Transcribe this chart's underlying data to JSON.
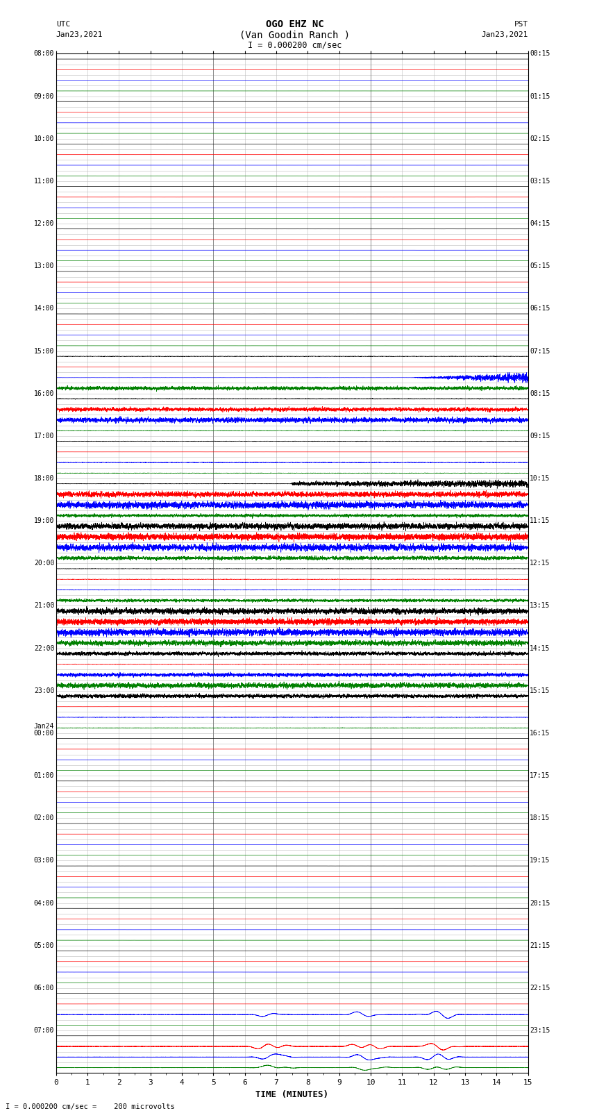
{
  "title_line1": "OGO EHZ NC",
  "title_line2": "(Van Goodin Ranch )",
  "title_line3": "I = 0.000200 cm/sec",
  "left_label_top": "UTC",
  "left_label_date": "Jan23,2021",
  "right_label_top": "PST",
  "right_label_date": "Jan23,2021",
  "xlabel": "TIME (MINUTES)",
  "bottom_note": "I = 0.000200 cm/sec =    200 microvolts",
  "n_rows": 96,
  "n_minutes": 15,
  "background_color": "#ffffff",
  "grid_color": "#bbbbbb",
  "figsize": [
    8.5,
    16.13
  ],
  "dpi": 100,
  "utc_labels": {
    "0": "08:00",
    "4": "09:00",
    "8": "10:00",
    "12": "11:00",
    "16": "12:00",
    "20": "13:00",
    "24": "14:00",
    "28": "15:00",
    "32": "16:00",
    "36": "17:00",
    "40": "18:00",
    "44": "19:00",
    "48": "20:00",
    "52": "21:00",
    "56": "22:00",
    "60": "23:00",
    "64": "Jan24\n00:00",
    "68": "01:00",
    "72": "02:00",
    "76": "03:00",
    "80": "04:00",
    "84": "05:00",
    "88": "06:00",
    "92": "07:00"
  },
  "pst_labels": {
    "0": "00:15",
    "4": "01:15",
    "8": "02:15",
    "12": "03:15",
    "16": "04:15",
    "20": "05:15",
    "24": "06:15",
    "28": "07:15",
    "32": "08:15",
    "36": "09:15",
    "40": "10:15",
    "44": "11:15",
    "48": "12:15",
    "52": "13:15",
    "56": "14:15",
    "60": "15:15",
    "64": "16:15",
    "68": "17:15",
    "72": "18:15",
    "76": "19:15",
    "80": "20:15",
    "84": "21:15",
    "88": "22:15",
    "92": "23:15"
  },
  "row_configs": [
    {
      "color": "black",
      "amp": 0.02,
      "noise": 0.01,
      "style": "flat"
    },
    {
      "color": "red",
      "amp": 0.02,
      "noise": 0.01,
      "style": "flat"
    },
    {
      "color": "blue",
      "amp": 0.02,
      "noise": 0.01,
      "style": "flat"
    },
    {
      "color": "green",
      "amp": 0.02,
      "noise": 0.01,
      "style": "flat"
    },
    {
      "color": "black",
      "amp": 0.02,
      "noise": 0.01,
      "style": "flat"
    },
    {
      "color": "red",
      "amp": 0.02,
      "noise": 0.01,
      "style": "flat"
    },
    {
      "color": "blue",
      "amp": 0.02,
      "noise": 0.01,
      "style": "flat"
    },
    {
      "color": "green",
      "amp": 0.02,
      "noise": 0.01,
      "style": "flat"
    },
    {
      "color": "black",
      "amp": 0.02,
      "noise": 0.01,
      "style": "flat"
    },
    {
      "color": "red",
      "amp": 0.02,
      "noise": 0.01,
      "style": "flat"
    },
    {
      "color": "blue",
      "amp": 0.02,
      "noise": 0.01,
      "style": "flat"
    },
    {
      "color": "green",
      "amp": 0.02,
      "noise": 0.01,
      "style": "flat"
    },
    {
      "color": "black",
      "amp": 0.02,
      "noise": 0.01,
      "style": "flat"
    },
    {
      "color": "red",
      "amp": 0.02,
      "noise": 0.01,
      "style": "flat"
    },
    {
      "color": "blue",
      "amp": 0.02,
      "noise": 0.01,
      "style": "flat"
    },
    {
      "color": "green",
      "amp": 0.02,
      "noise": 0.01,
      "style": "flat"
    },
    {
      "color": "black",
      "amp": 0.02,
      "noise": 0.01,
      "style": "flat"
    },
    {
      "color": "red",
      "amp": 0.02,
      "noise": 0.01,
      "style": "flat"
    },
    {
      "color": "blue",
      "amp": 0.02,
      "noise": 0.01,
      "style": "flat"
    },
    {
      "color": "green",
      "amp": 0.02,
      "noise": 0.01,
      "style": "flat"
    },
    {
      "color": "black",
      "amp": 0.02,
      "noise": 0.01,
      "style": "flat"
    },
    {
      "color": "red",
      "amp": 0.02,
      "noise": 0.01,
      "style": "flat"
    },
    {
      "color": "blue",
      "amp": 0.02,
      "noise": 0.01,
      "style": "flat"
    },
    {
      "color": "green",
      "amp": 0.02,
      "noise": 0.01,
      "style": "flat"
    },
    {
      "color": "black",
      "amp": 0.02,
      "noise": 0.01,
      "style": "flat"
    },
    {
      "color": "red",
      "amp": 0.02,
      "noise": 0.01,
      "style": "flat"
    },
    {
      "color": "blue",
      "amp": 0.02,
      "noise": 0.01,
      "style": "flat"
    },
    {
      "color": "green",
      "amp": 0.02,
      "noise": 0.01,
      "style": "flat"
    },
    {
      "color": "black",
      "amp": 0.08,
      "noise": 0.02,
      "style": "quiet"
    },
    {
      "color": "red",
      "amp": 0.04,
      "noise": 0.01,
      "style": "flat"
    },
    {
      "color": "blue",
      "amp": 0.35,
      "noise": 0.05,
      "style": "active_end"
    },
    {
      "color": "green",
      "amp": 0.25,
      "noise": 0.04,
      "style": "active"
    },
    {
      "color": "black",
      "amp": 0.12,
      "noise": 0.03,
      "style": "quiet"
    },
    {
      "color": "red",
      "amp": 0.25,
      "noise": 0.04,
      "style": "active"
    },
    {
      "color": "blue",
      "amp": 0.35,
      "noise": 0.06,
      "style": "active"
    },
    {
      "color": "green",
      "amp": 0.08,
      "noise": 0.02,
      "style": "quiet"
    },
    {
      "color": "black",
      "amp": 0.12,
      "noise": 0.02,
      "style": "quiet"
    },
    {
      "color": "red",
      "amp": 0.08,
      "noise": 0.02,
      "style": "flat_offset"
    },
    {
      "color": "blue",
      "amp": 0.15,
      "noise": 0.03,
      "style": "quiet"
    },
    {
      "color": "green",
      "amp": 0.08,
      "noise": 0.02,
      "style": "quiet"
    },
    {
      "color": "black",
      "amp": 0.25,
      "noise": 0.05,
      "style": "active_burst"
    },
    {
      "color": "red",
      "amp": 0.35,
      "noise": 0.06,
      "style": "active"
    },
    {
      "color": "blue",
      "amp": 0.45,
      "noise": 0.08,
      "style": "active"
    },
    {
      "color": "green",
      "amp": 0.2,
      "noise": 0.04,
      "style": "active"
    },
    {
      "color": "black",
      "amp": 0.45,
      "noise": 0.08,
      "style": "active_burst2"
    },
    {
      "color": "red",
      "amp": 0.48,
      "noise": 0.09,
      "style": "dense"
    },
    {
      "color": "blue",
      "amp": 0.45,
      "noise": 0.08,
      "style": "active"
    },
    {
      "color": "green",
      "amp": 0.25,
      "noise": 0.05,
      "style": "active"
    },
    {
      "color": "black",
      "amp": 0.12,
      "noise": 0.02,
      "style": "quiet"
    },
    {
      "color": "red",
      "amp": 0.12,
      "noise": 0.02,
      "style": "quiet"
    },
    {
      "color": "blue",
      "amp": 0.08,
      "noise": 0.02,
      "style": "quiet"
    },
    {
      "color": "green",
      "amp": 0.2,
      "noise": 0.04,
      "style": "active"
    },
    {
      "color": "black",
      "amp": 0.45,
      "noise": 0.08,
      "style": "active_burst2"
    },
    {
      "color": "red",
      "amp": 0.48,
      "noise": 0.09,
      "style": "dense"
    },
    {
      "color": "blue",
      "amp": 0.45,
      "noise": 0.08,
      "style": "active"
    },
    {
      "color": "green",
      "amp": 0.35,
      "noise": 0.06,
      "style": "active"
    },
    {
      "color": "black",
      "amp": 0.25,
      "noise": 0.04,
      "style": "active"
    },
    {
      "color": "red",
      "amp": 0.12,
      "noise": 0.02,
      "style": "quiet"
    },
    {
      "color": "blue",
      "amp": 0.25,
      "noise": 0.04,
      "style": "active"
    },
    {
      "color": "green",
      "amp": 0.35,
      "noise": 0.05,
      "style": "active"
    },
    {
      "color": "black",
      "amp": 0.25,
      "noise": 0.04,
      "style": "active"
    },
    {
      "color": "red",
      "amp": 0.08,
      "noise": 0.02,
      "style": "flat"
    },
    {
      "color": "blue",
      "amp": 0.12,
      "noise": 0.02,
      "style": "quiet"
    },
    {
      "color": "green",
      "amp": 0.1,
      "noise": 0.02,
      "style": "quiet"
    },
    {
      "color": "black",
      "amp": 0.08,
      "noise": 0.01,
      "style": "flat"
    },
    {
      "color": "red",
      "amp": 0.06,
      "noise": 0.01,
      "style": "flat"
    },
    {
      "color": "blue",
      "amp": 0.06,
      "noise": 0.01,
      "style": "flat"
    },
    {
      "color": "green",
      "amp": 0.05,
      "noise": 0.01,
      "style": "flat"
    },
    {
      "color": "black",
      "amp": 0.08,
      "noise": 0.01,
      "style": "flat"
    },
    {
      "color": "red",
      "amp": 0.06,
      "noise": 0.01,
      "style": "flat"
    },
    {
      "color": "blue",
      "amp": 0.06,
      "noise": 0.01,
      "style": "flat"
    },
    {
      "color": "green",
      "amp": 0.05,
      "noise": 0.01,
      "style": "flat"
    },
    {
      "color": "black",
      "amp": 0.08,
      "noise": 0.01,
      "style": "flat"
    },
    {
      "color": "red",
      "amp": 0.06,
      "noise": 0.01,
      "style": "flat"
    },
    {
      "color": "blue",
      "amp": 0.06,
      "noise": 0.01,
      "style": "flat"
    },
    {
      "color": "green",
      "amp": 0.05,
      "noise": 0.01,
      "style": "flat"
    },
    {
      "color": "black",
      "amp": 0.08,
      "noise": 0.01,
      "style": "flat"
    },
    {
      "color": "red",
      "amp": 0.06,
      "noise": 0.01,
      "style": "flat"
    },
    {
      "color": "blue",
      "amp": 0.06,
      "noise": 0.01,
      "style": "flat"
    },
    {
      "color": "green",
      "amp": 0.05,
      "noise": 0.01,
      "style": "flat"
    },
    {
      "color": "black",
      "amp": 0.08,
      "noise": 0.01,
      "style": "flat"
    },
    {
      "color": "red",
      "amp": 0.06,
      "noise": 0.01,
      "style": "flat"
    },
    {
      "color": "blue",
      "amp": 0.06,
      "noise": 0.01,
      "style": "flat"
    },
    {
      "color": "green",
      "amp": 0.05,
      "noise": 0.01,
      "style": "flat"
    },
    {
      "color": "black",
      "amp": 0.08,
      "noise": 0.02,
      "style": "flat"
    },
    {
      "color": "red",
      "amp": 0.06,
      "noise": 0.01,
      "style": "flat"
    },
    {
      "color": "blue",
      "amp": 0.06,
      "noise": 0.01,
      "style": "flat"
    },
    {
      "color": "green",
      "amp": 0.05,
      "noise": 0.01,
      "style": "flat"
    },
    {
      "color": "black",
      "amp": 0.12,
      "noise": 0.02,
      "style": "flat"
    },
    {
      "color": "red",
      "amp": 0.08,
      "noise": 0.01,
      "style": "flat"
    },
    {
      "color": "blue",
      "amp": 0.35,
      "noise": 0.06,
      "style": "wave"
    },
    {
      "color": "green",
      "amp": 0.08,
      "noise": 0.01,
      "style": "flat"
    },
    {
      "color": "black",
      "amp": 0.08,
      "noise": 0.01,
      "style": "flat"
    },
    {
      "color": "red",
      "amp": 0.35,
      "noise": 0.06,
      "style": "wave"
    },
    {
      "color": "blue",
      "amp": 0.3,
      "noise": 0.05,
      "style": "wave"
    },
    {
      "color": "green",
      "amp": 0.25,
      "noise": 0.04,
      "style": "wave"
    }
  ]
}
